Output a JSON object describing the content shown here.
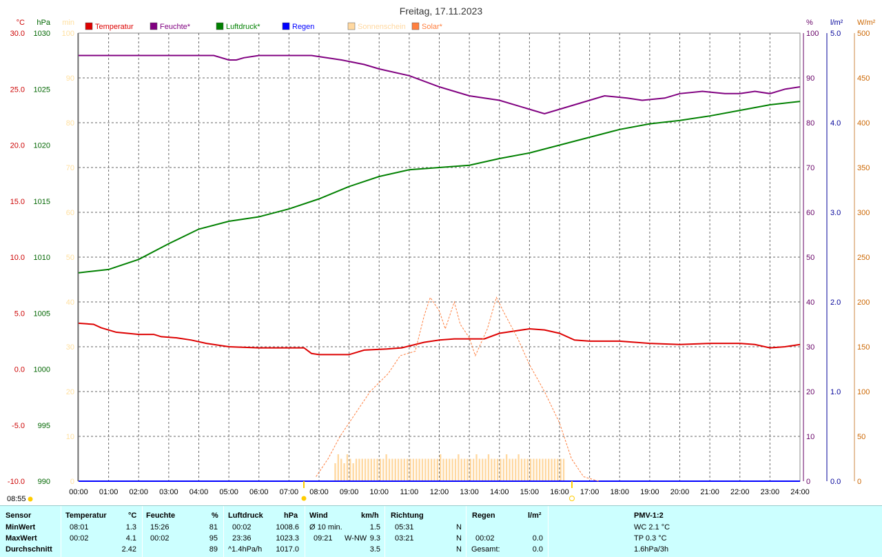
{
  "chart_data": {
    "type": "line",
    "title": "Freitag, 17.11.2023",
    "x_ticks": [
      "00:00",
      "01:00",
      "02:00",
      "03:00",
      "04:00",
      "05:00",
      "06:00",
      "07:00",
      "08:00",
      "09:00",
      "10:00",
      "11:00",
      "12:00",
      "13:00",
      "14:00",
      "15:00",
      "16:00",
      "17:00",
      "18:00",
      "19:00",
      "20:00",
      "21:00",
      "22:00",
      "23:00",
      "24:00"
    ],
    "axes": {
      "temp": {
        "unit": "°C",
        "color": "#cc0000",
        "range": [
          -10,
          30
        ],
        "ticks": [
          "30.0",
          "25.0",
          "20.0",
          "15.0",
          "10.0",
          "5.0",
          "0.0",
          "-5.0",
          "-10.0"
        ]
      },
      "press": {
        "unit": "hPa",
        "color": "#006600",
        "range": [
          990,
          1030
        ],
        "ticks": [
          "1030",
          "1025",
          "1020",
          "1015",
          "1010",
          "1005",
          "1000",
          "995",
          "990"
        ]
      },
      "min": {
        "unit": "min",
        "color": "#ffe0a0",
        "range": [
          0,
          100
        ],
        "ticks": [
          "100",
          "90",
          "80",
          "70",
          "60",
          "50",
          "40",
          "30",
          "20",
          "10",
          "0"
        ]
      },
      "hum": {
        "unit": "%",
        "color": "#660066",
        "range": [
          0,
          100
        ],
        "ticks": [
          "100",
          "90",
          "80",
          "70",
          "60",
          "50",
          "40",
          "30",
          "20",
          "10",
          "0"
        ]
      },
      "rain": {
        "unit": "l/m²",
        "color": "#000099",
        "range": [
          0,
          5
        ],
        "ticks": [
          "5.0",
          "4.0",
          "3.0",
          "2.0",
          "1.0",
          "0.0"
        ],
        "tick_values": [
          5,
          4,
          3,
          2,
          1,
          0
        ]
      },
      "solar": {
        "unit": "W/m²",
        "color": "#cc6600",
        "range": [
          0,
          500
        ],
        "ticks": [
          "500",
          "450",
          "400",
          "350",
          "300",
          "250",
          "200",
          "150",
          "100",
          "50",
          "0"
        ]
      }
    },
    "legend": [
      {
        "name": "Temperatur",
        "color": "#dd0000"
      },
      {
        "name": "Feuchte*",
        "color": "#800080"
      },
      {
        "name": "Luftdruck*",
        "color": "#008000"
      },
      {
        "name": "Regen",
        "color": "#0000ff"
      },
      {
        "name": "Sonnenschein",
        "color": "#ffd8a0"
      },
      {
        "name": "Solar*",
        "color": "#ff7f3f"
      }
    ],
    "series": [
      {
        "name": "Temperatur",
        "axis": "temp",
        "color": "#dd0000",
        "points": [
          [
            0,
            4.1
          ],
          [
            0.5,
            4.0
          ],
          [
            0.75,
            3.7
          ],
          [
            1.25,
            3.3
          ],
          [
            2,
            3.1
          ],
          [
            2.5,
            3.1
          ],
          [
            2.75,
            2.9
          ],
          [
            3.25,
            2.8
          ],
          [
            3.75,
            2.6
          ],
          [
            4.25,
            2.3
          ],
          [
            5,
            2.0
          ],
          [
            6,
            1.9
          ],
          [
            7.5,
            1.9
          ],
          [
            7.75,
            1.4
          ],
          [
            8,
            1.3
          ],
          [
            9,
            1.3
          ],
          [
            9.5,
            1.7
          ],
          [
            10.25,
            1.8
          ],
          [
            10.75,
            1.9
          ],
          [
            11.5,
            2.4
          ],
          [
            12,
            2.6
          ],
          [
            12.5,
            2.7
          ],
          [
            13.5,
            2.7
          ],
          [
            14,
            3.2
          ],
          [
            14.5,
            3.4
          ],
          [
            15,
            3.6
          ],
          [
            15.5,
            3.5
          ],
          [
            16,
            3.2
          ],
          [
            16.5,
            2.6
          ],
          [
            17,
            2.5
          ],
          [
            18,
            2.5
          ],
          [
            19,
            2.3
          ],
          [
            20,
            2.2
          ],
          [
            21,
            2.3
          ],
          [
            22,
            2.3
          ],
          [
            22.5,
            2.2
          ],
          [
            23,
            1.9
          ],
          [
            23.5,
            2.0
          ],
          [
            24,
            2.2
          ]
        ]
      },
      {
        "name": "Feuchte*",
        "axis": "hum",
        "color": "#800080",
        "points": [
          [
            0,
            95
          ],
          [
            4.5,
            95
          ],
          [
            5,
            94
          ],
          [
            5.25,
            94
          ],
          [
            5.5,
            94.5
          ],
          [
            6,
            95
          ],
          [
            7.75,
            95
          ],
          [
            8.25,
            94.5
          ],
          [
            8.75,
            94
          ],
          [
            9.5,
            93
          ],
          [
            10,
            92
          ],
          [
            11,
            90.5
          ],
          [
            12,
            88
          ],
          [
            12.5,
            87
          ],
          [
            13,
            86
          ],
          [
            14,
            85
          ],
          [
            15,
            83
          ],
          [
            15.5,
            82
          ],
          [
            16,
            83
          ],
          [
            16.5,
            84
          ],
          [
            17,
            85
          ],
          [
            17.5,
            86
          ],
          [
            18.25,
            85.5
          ],
          [
            18.75,
            85
          ],
          [
            19.5,
            85.5
          ],
          [
            20,
            86.5
          ],
          [
            20.75,
            87
          ],
          [
            21.5,
            86.5
          ],
          [
            22,
            86.5
          ],
          [
            22.5,
            87
          ],
          [
            23,
            86.5
          ],
          [
            23.5,
            87.5
          ],
          [
            24,
            88
          ]
        ]
      },
      {
        "name": "Luftdruck*",
        "axis": "press",
        "color": "#008000",
        "points": [
          [
            0,
            1008.6
          ],
          [
            1,
            1008.9
          ],
          [
            2,
            1009.8
          ],
          [
            3,
            1011.2
          ],
          [
            4,
            1012.5
          ],
          [
            5,
            1013.2
          ],
          [
            6,
            1013.6
          ],
          [
            7,
            1014.3
          ],
          [
            8,
            1015.2
          ],
          [
            9,
            1016.3
          ],
          [
            10,
            1017.2
          ],
          [
            11,
            1017.8
          ],
          [
            12,
            1018.0
          ],
          [
            13,
            1018.2
          ],
          [
            14,
            1018.8
          ],
          [
            15,
            1019.3
          ],
          [
            16,
            1020.0
          ],
          [
            17,
            1020.7
          ],
          [
            18,
            1021.4
          ],
          [
            19,
            1021.9
          ],
          [
            20,
            1022.2
          ],
          [
            21,
            1022.6
          ],
          [
            22,
            1023.1
          ],
          [
            23,
            1023.6
          ],
          [
            24,
            1023.9
          ]
        ]
      },
      {
        "name": "Regen",
        "axis": "rain",
        "color": "#0000ff",
        "points": [
          [
            0,
            0
          ],
          [
            24,
            0
          ]
        ]
      },
      {
        "name": "Solar*",
        "axis": "solar",
        "color": "#ff7f3f",
        "dashed": true,
        "points": [
          [
            7.9,
            5
          ],
          [
            8.3,
            25
          ],
          [
            8.7,
            50
          ],
          [
            9.2,
            75
          ],
          [
            9.7,
            100
          ],
          [
            10.3,
            120
          ],
          [
            10.7,
            140
          ],
          [
            11.2,
            145
          ],
          [
            11.5,
            185
          ],
          [
            11.7,
            205
          ],
          [
            12.0,
            190
          ],
          [
            12.2,
            170
          ],
          [
            12.5,
            200
          ],
          [
            12.7,
            175
          ],
          [
            13.0,
            160
          ],
          [
            13.2,
            140
          ],
          [
            13.6,
            170
          ],
          [
            13.9,
            205
          ],
          [
            14.2,
            185
          ],
          [
            14.6,
            160
          ],
          [
            15.0,
            130
          ],
          [
            15.5,
            100
          ],
          [
            16.0,
            65
          ],
          [
            16.4,
            25
          ],
          [
            16.8,
            5
          ],
          [
            17.3,
            0
          ]
        ]
      },
      {
        "name": "Sonnenschein",
        "axis": "min",
        "color": "#ffd8a0",
        "type": "bar",
        "x_start": 8.5,
        "x_step": 0.1,
        "values": [
          4,
          6,
          5,
          4,
          6,
          5,
          4,
          5,
          5,
          5,
          5,
          5,
          5,
          5,
          5,
          5,
          5,
          6,
          5,
          5,
          5,
          5,
          5,
          5,
          5,
          5,
          5,
          5,
          5,
          5,
          5,
          5,
          5,
          5,
          5,
          6,
          5,
          5,
          5,
          5,
          5,
          6,
          5,
          5,
          5,
          5,
          5,
          6,
          5,
          5,
          5,
          6,
          5,
          5,
          5,
          5,
          5,
          6,
          5,
          5,
          5,
          6,
          5,
          5,
          5,
          5,
          5,
          5,
          5,
          5,
          5,
          5,
          5,
          5,
          5,
          5,
          5
        ]
      }
    ],
    "xlim": [
      0,
      24
    ],
    "grid": true,
    "legend_placement": "top",
    "markers": [
      {
        "label": "08:55"
      }
    ]
  },
  "stats": {
    "headers": {
      "sensor": "Sensor",
      "temp": "Temperatur",
      "temp_unit": "°C",
      "hum": "Feuchte",
      "hum_unit": "%",
      "press": "Luftdruck",
      "press_unit": "hPa",
      "wind": "Wind",
      "wind_unit": "km/h",
      "dir": "Richtung",
      "rain": "Regen",
      "rain_unit": "l/m²",
      "pmv": "PMV-1:2"
    },
    "rows": [
      {
        "label": "MinWert",
        "temp_time": "08:01",
        "temp_val": "1.3",
        "hum_time": "15:26",
        "hum_val": "81",
        "press_time": "00:02",
        "press_val": "1008.6",
        "wind_label": "Ø 10 min.",
        "wind_val": "1.5",
        "dir_time": "05:31",
        "dir_val": "N",
        "rain_time": "",
        "rain_val": "",
        "pmv": "WC 2.1 °C"
      },
      {
        "label": "MaxWert",
        "temp_time": "00:02",
        "temp_val": "4.1",
        "hum_time": "00:02",
        "hum_val": "95",
        "press_time": "23:36",
        "press_val": "1023.3",
        "wind_label": "09:21",
        "wind_dir": "W-NW",
        "wind_val": "9.3",
        "dir_time": "03:21",
        "dir_val": "N",
        "rain_time": "00:02",
        "rain_val": "0.0",
        "pmv": "TP 0.3 °C"
      },
      {
        "label": "Durchschnitt",
        "temp_time": "",
        "temp_val": "2.42",
        "hum_time": "",
        "hum_val": "89",
        "press_time": "^1.4hPa/h",
        "press_val": "1017.0",
        "wind_label": "",
        "wind_val": "3.5",
        "dir_time": "",
        "dir_val": "N",
        "rain_time": "Gesamt:",
        "rain_val": "0.0",
        "pmv": "1.6hPa/3h"
      }
    ]
  }
}
